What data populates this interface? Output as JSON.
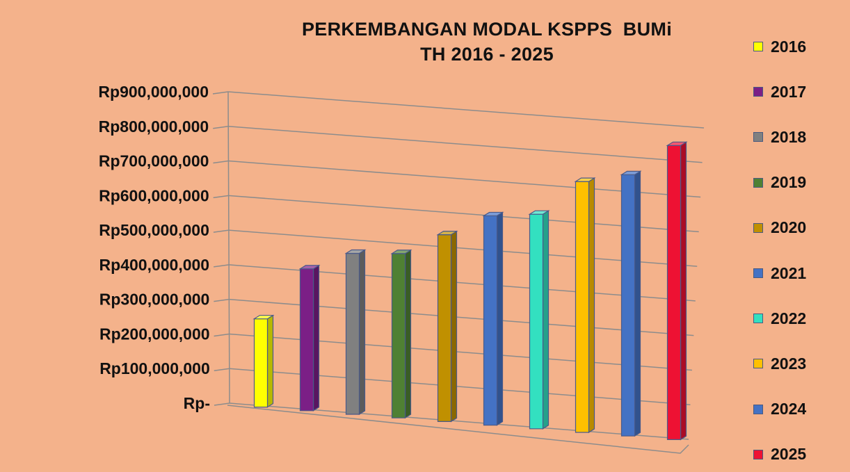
{
  "chart_data": {
    "type": "bar",
    "title_lines": [
      "PERKEMBANGAN MODAL KSPPS  BUMi",
      "TH 2016 - 2025"
    ],
    "xlabel": "",
    "ylabel": "",
    "ylim": [
      0,
      900000000
    ],
    "y_ticks": [
      "Rp-",
      "Rp100,000,000",
      "Rp200,000,000",
      "Rp300,000,000",
      "Rp400,000,000",
      "Rp500,000,000",
      "Rp600,000,000",
      "Rp700,000,000",
      "Rp800,000,000",
      "Rp900,000,000"
    ],
    "y_tick_values": [
      0,
      100000000,
      200000000,
      300000000,
      400000000,
      500000000,
      600000000,
      700000000,
      800000000,
      900000000
    ],
    "grid": true,
    "legend_position": "right",
    "style": "3d-column",
    "series": [
      {
        "name": "2016",
        "value": 255000000,
        "color": "#FFFF00"
      },
      {
        "name": "2017",
        "value": 410000000,
        "color": "#7B1F86"
      },
      {
        "name": "2018",
        "value": 465000000,
        "color": "#808080"
      },
      {
        "name": "2019",
        "value": 475000000,
        "color": "#4F8033"
      },
      {
        "name": "2020",
        "value": 540000000,
        "color": "#C09000"
      },
      {
        "name": "2021",
        "value": 605000000,
        "color": "#4472C4"
      },
      {
        "name": "2022",
        "value": 620000000,
        "color": "#33E0C0"
      },
      {
        "name": "2023",
        "value": 725000000,
        "color": "#FFC000"
      },
      {
        "name": "2024",
        "value": 755000000,
        "color": "#4472C4"
      },
      {
        "name": "2025",
        "value": 850000000,
        "color": "#EE1133"
      }
    ]
  }
}
